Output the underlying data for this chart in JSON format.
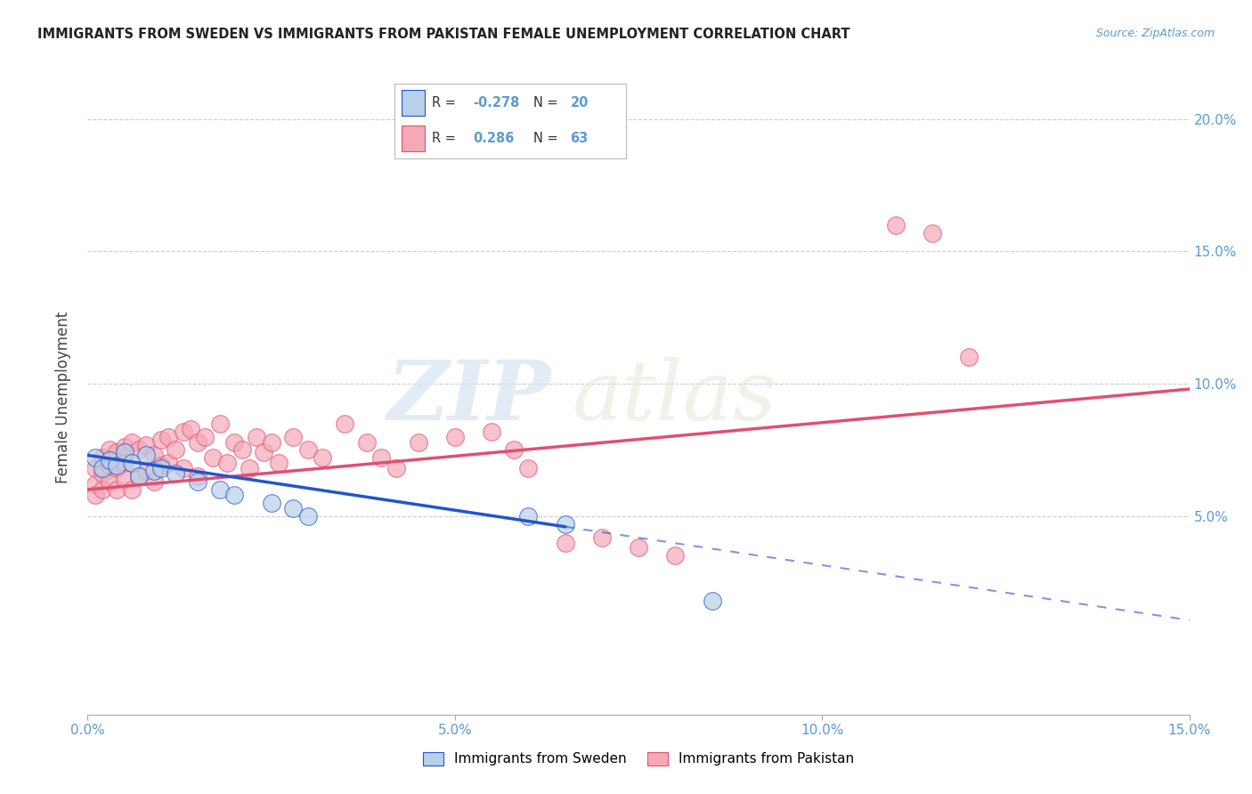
{
  "title": "IMMIGRANTS FROM SWEDEN VS IMMIGRANTS FROM PAKISTAN FEMALE UNEMPLOYMENT CORRELATION CHART",
  "source": "Source: ZipAtlas.com",
  "ylabel": "Female Unemployment",
  "yaxis_labels": [
    "5.0%",
    "10.0%",
    "15.0%",
    "20.0%"
  ],
  "yaxis_values": [
    0.05,
    0.1,
    0.15,
    0.2
  ],
  "xlim": [
    0.0,
    0.15
  ],
  "ylim": [
    -0.025,
    0.215
  ],
  "sweden_R": -0.278,
  "sweden_N": 20,
  "pakistan_R": 0.286,
  "pakistan_N": 63,
  "sweden_color": "#b8d0ea",
  "pakistan_color": "#f5a8b8",
  "sweden_line_color": "#2255cc",
  "pakistan_line_color": "#e05070",
  "background_color": "#ffffff",
  "watermark_zip": "ZIP",
  "watermark_atlas": "atlas",
  "sweden_x": [
    0.001,
    0.002,
    0.003,
    0.004,
    0.005,
    0.006,
    0.007,
    0.008,
    0.009,
    0.01,
    0.012,
    0.015,
    0.018,
    0.02,
    0.025,
    0.028,
    0.03,
    0.06,
    0.065,
    0.085
  ],
  "sweden_y": [
    0.072,
    0.068,
    0.071,
    0.069,
    0.074,
    0.07,
    0.065,
    0.073,
    0.067,
    0.068,
    0.066,
    0.063,
    0.06,
    0.058,
    0.055,
    0.053,
    0.05,
    0.05,
    0.047,
    0.018
  ],
  "pakistan_x": [
    0.001,
    0.001,
    0.001,
    0.002,
    0.002,
    0.002,
    0.003,
    0.003,
    0.003,
    0.004,
    0.004,
    0.004,
    0.005,
    0.005,
    0.005,
    0.006,
    0.006,
    0.007,
    0.007,
    0.008,
    0.008,
    0.009,
    0.009,
    0.01,
    0.01,
    0.011,
    0.011,
    0.012,
    0.013,
    0.013,
    0.014,
    0.015,
    0.015,
    0.016,
    0.017,
    0.018,
    0.019,
    0.02,
    0.021,
    0.022,
    0.023,
    0.024,
    0.025,
    0.026,
    0.028,
    0.03,
    0.032,
    0.035,
    0.038,
    0.04,
    0.042,
    0.045,
    0.05,
    0.055,
    0.058,
    0.06,
    0.065,
    0.07,
    0.075,
    0.08,
    0.11,
    0.115,
    0.12
  ],
  "pakistan_y": [
    0.068,
    0.062,
    0.058,
    0.072,
    0.066,
    0.06,
    0.075,
    0.069,
    0.063,
    0.074,
    0.068,
    0.06,
    0.076,
    0.07,
    0.064,
    0.078,
    0.06,
    0.075,
    0.065,
    0.077,
    0.067,
    0.073,
    0.063,
    0.079,
    0.069,
    0.08,
    0.07,
    0.075,
    0.082,
    0.068,
    0.083,
    0.078,
    0.065,
    0.08,
    0.072,
    0.085,
    0.07,
    0.078,
    0.075,
    0.068,
    0.08,
    0.074,
    0.078,
    0.07,
    0.08,
    0.075,
    0.072,
    0.085,
    0.078,
    0.072,
    0.068,
    0.078,
    0.08,
    0.082,
    0.075,
    0.068,
    0.04,
    0.042,
    0.038,
    0.035,
    0.16,
    0.157,
    0.11
  ],
  "sweden_line_x0": 0.0,
  "sweden_line_y0": 0.073,
  "sweden_line_x1": 0.065,
  "sweden_line_y1": 0.046,
  "sweden_line_dash_x0": 0.065,
  "sweden_line_dash_x1": 0.15,
  "pakistan_line_x0": 0.0,
  "pakistan_line_y0": 0.06,
  "pakistan_line_x1": 0.15,
  "pakistan_line_y1": 0.098
}
